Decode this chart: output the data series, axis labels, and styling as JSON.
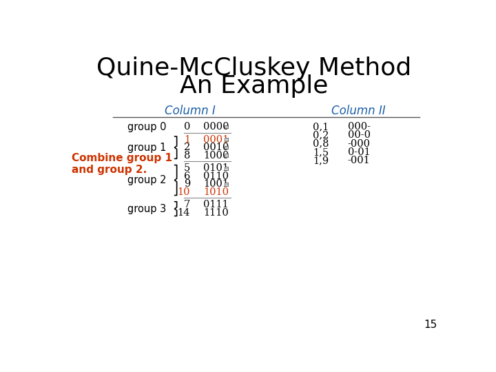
{
  "title_line1": "Quine-McCluskey Method",
  "title_line2": "An Example",
  "title_fontsize": 26,
  "title_color": "#000000",
  "col1_header": "Column I",
  "col2_header": "Column II",
  "header_color": "#1a5fa8",
  "header_fontsize": 12,
  "bg_color": "#ffffff",
  "combine_text": "Combine group 1\nand group 2.",
  "combine_color": "#cc3300",
  "combine_fontsize": 11,
  "page_number": "15",
  "col1_groups": {
    "group 0": [
      {
        "num": "0",
        "bits": "0000",
        "checked": true,
        "color": "#000000"
      }
    ],
    "group 1": [
      {
        "num": "1",
        "bits": "0001",
        "checked": true,
        "color": "#cc3300"
      },
      {
        "num": "2",
        "bits": "0010",
        "checked": true,
        "color": "#000000"
      },
      {
        "num": "8",
        "bits": "1000",
        "checked": true,
        "color": "#000000"
      }
    ],
    "group 2": [
      {
        "num": "5",
        "bits": "0101",
        "checked": true,
        "color": "#000000"
      },
      {
        "num": "6",
        "bits": "0110",
        "checked": false,
        "color": "#000000"
      },
      {
        "num": "9",
        "bits": "1001",
        "checked": true,
        "color": "#000000"
      },
      {
        "num": "10",
        "bits": "1010",
        "checked": false,
        "color": "#cc3300"
      }
    ],
    "group 3": [
      {
        "num": "7",
        "bits": "0111",
        "checked": false,
        "color": "#000000"
      },
      {
        "num": "14",
        "bits": "1110",
        "checked": false,
        "color": "#000000"
      }
    ]
  },
  "col2_entries": [
    {
      "pair": "0,1",
      "expr": "000-"
    },
    {
      "pair": "0,2",
      "expr": "00-0"
    },
    {
      "pair": "0,8",
      "expr": "-000"
    },
    {
      "pair": "1,5",
      "expr": "0-01"
    },
    {
      "pair": "1,9",
      "expr": "-001"
    }
  ],
  "separator_color": "#555555",
  "group_label_color": "#000000",
  "group_label_fontsize": 10.5,
  "data_fontsize": 10.5,
  "brace_color": "#000000",
  "line_color": "#777777"
}
